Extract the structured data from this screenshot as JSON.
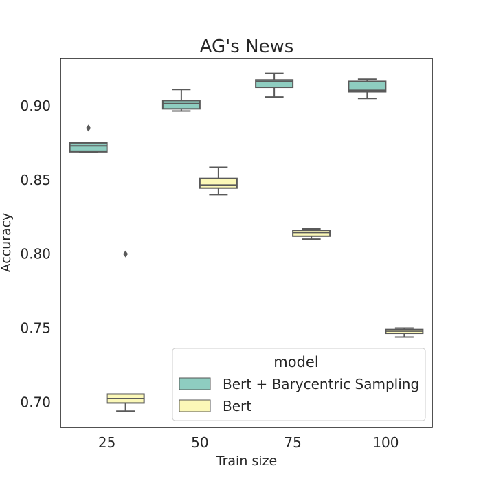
{
  "chart_data": {
    "type": "box",
    "title": "AG's News",
    "xlabel": "Train size",
    "ylabel": "Accuracy",
    "categories": [
      "25",
      "50",
      "75",
      "100"
    ],
    "ylim": [
      0.683,
      0.932
    ],
    "yticks": [
      0.7,
      0.75,
      0.8,
      0.85,
      0.9
    ],
    "ytick_labels": [
      "0.70",
      "0.75",
      "0.80",
      "0.85",
      "0.90"
    ],
    "grid": false,
    "legend": {
      "title": "model",
      "position": "lower-right"
    },
    "series": [
      {
        "name": "Bert + Barycentric Sampling",
        "color": "#8ecdc0",
        "boxes": [
          {
            "category": "25",
            "min": 0.8685,
            "q1": 0.869,
            "median": 0.873,
            "q3": 0.875,
            "max": 0.875,
            "outliers": [
              0.885
            ]
          },
          {
            "category": "50",
            "min": 0.8965,
            "q1": 0.898,
            "median": 0.9015,
            "q3": 0.9035,
            "max": 0.911,
            "outliers": []
          },
          {
            "category": "75",
            "min": 0.906,
            "q1": 0.9125,
            "median": 0.9165,
            "q3": 0.9175,
            "max": 0.922,
            "outliers": []
          },
          {
            "category": "100",
            "min": 0.905,
            "q1": 0.9095,
            "median": 0.9105,
            "q3": 0.9165,
            "max": 0.918,
            "outliers": []
          }
        ]
      },
      {
        "name": "Bert",
        "color": "#fbf8b8",
        "boxes": [
          {
            "category": "25",
            "min": 0.694,
            "q1": 0.6995,
            "median": 0.7025,
            "q3": 0.7055,
            "max": 0.7055,
            "outliers": [
              0.8
            ]
          },
          {
            "category": "50",
            "min": 0.84,
            "q1": 0.8445,
            "median": 0.8465,
            "q3": 0.851,
            "max": 0.8585,
            "outliers": []
          },
          {
            "category": "75",
            "min": 0.81,
            "q1": 0.812,
            "median": 0.8145,
            "q3": 0.816,
            "max": 0.817,
            "outliers": []
          },
          {
            "category": "100",
            "min": 0.744,
            "q1": 0.7465,
            "median": 0.748,
            "q3": 0.749,
            "max": 0.75,
            "outliers": []
          }
        ]
      }
    ]
  }
}
